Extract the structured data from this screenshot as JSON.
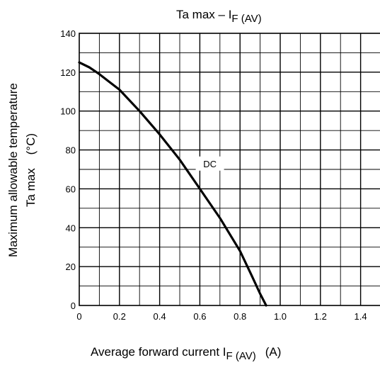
{
  "chart_data": {
    "type": "line",
    "title": {
      "main": "Ta max – I",
      "sub": "F (AV)"
    },
    "xlabel": {
      "main": "Average forward current   I",
      "sub": "F (AV)",
      "unit": "(A)"
    },
    "ylabel": {
      "line1": "Maximum allowable temperature",
      "line2": "Ta max    (°C)"
    },
    "xlim": [
      0,
      1.5
    ],
    "ylim": [
      0,
      140
    ],
    "x_ticks": [
      "0",
      "0.2",
      "0.4",
      "0.6",
      "0.8",
      "1.0",
      "1.2",
      "1.4"
    ],
    "y_ticks": [
      "0",
      "20",
      "40",
      "60",
      "80",
      "100",
      "120",
      "140"
    ],
    "grid": true,
    "series": [
      {
        "name": "DC",
        "x": [
          0,
          0.05,
          0.1,
          0.15,
          0.2,
          0.3,
          0.4,
          0.5,
          0.6,
          0.7,
          0.8,
          0.86,
          0.9,
          0.93
        ],
        "y": [
          125,
          122.5,
          119,
          115,
          111,
          100,
          88,
          75,
          60,
          45,
          28,
          15,
          6,
          0
        ]
      }
    ],
    "annotations": [
      {
        "text": "DC",
        "x": 0.65,
        "y": 73
      }
    ]
  }
}
